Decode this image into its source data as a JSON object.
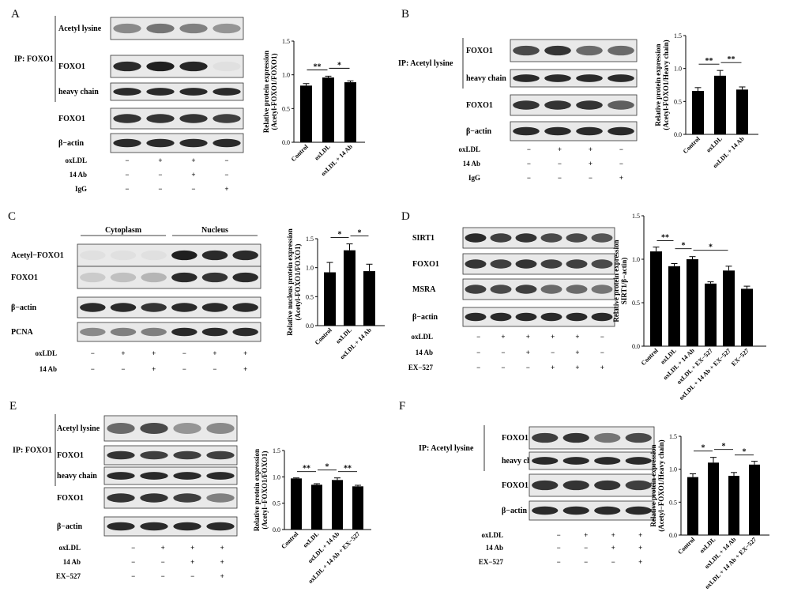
{
  "panels": [
    {
      "id": "A",
      "label": "A",
      "ip_label": "IP: FOXO1",
      "ip_rows": 3,
      "lanes": 4,
      "blot_rows": [
        {
          "label": "Acetyl lysine",
          "intensity": [
            0.45,
            0.55,
            0.5,
            0.4
          ]
        },
        {
          "label": "FOXO1",
          "intensity": [
            0.9,
            0.95,
            0.92,
            0.05
          ]
        },
        {
          "label": "heavy chain",
          "intensity": [
            0.9,
            0.9,
            0.9,
            0.9
          ]
        },
        {
          "label": "FOXO1",
          "intensity": [
            0.85,
            0.85,
            0.85,
            0.8
          ]
        },
        {
          "label": "β−actin",
          "intensity": [
            0.9,
            0.9,
            0.9,
            0.9
          ]
        }
      ],
      "treatments": [
        {
          "label": "oxLDL",
          "signs": [
            "−",
            "+",
            "+",
            "−"
          ]
        },
        {
          "label": "14 Ab",
          "signs": [
            "−",
            "−",
            "+",
            "−"
          ]
        },
        {
          "label": "IgG",
          "signs": [
            "−",
            "−",
            "−",
            "+"
          ]
        }
      ],
      "chart_data": {
        "type": "bar",
        "categories": [
          "Control",
          "oxLDL",
          "oxLDL + 14 Ab"
        ],
        "values": [
          0.84,
          0.96,
          0.89
        ],
        "errors": [
          0.03,
          0.02,
          0.02
        ],
        "ylabel": [
          "Relative protein expression",
          "(Acetyl-FOXO1/FOXO1)"
        ],
        "ylim": [
          0,
          1.5
        ],
        "yticks": [
          "0.0",
          "0.5",
          "1.0",
          "1.5"
        ],
        "significance": [
          {
            "from": 0,
            "to": 1,
            "label": "**"
          },
          {
            "from": 1,
            "to": 2,
            "label": "*"
          }
        ]
      }
    },
    {
      "id": "B",
      "label": "B",
      "ip_label": "IP:  Acetyl lysine",
      "ip_rows": 2,
      "lanes": 4,
      "blot_rows": [
        {
          "label": "FOXO1",
          "intensity": [
            0.75,
            0.85,
            0.6,
            0.6
          ]
        },
        {
          "label": "heavy chain",
          "intensity": [
            0.9,
            0.9,
            0.9,
            0.9
          ]
        },
        {
          "label": "FOXO1",
          "intensity": [
            0.85,
            0.85,
            0.85,
            0.65
          ]
        },
        {
          "label": "β−actin",
          "intensity": [
            0.9,
            0.9,
            0.9,
            0.9
          ]
        }
      ],
      "treatments": [
        {
          "label": "oxLDL",
          "signs": [
            "−",
            "+",
            "+",
            "−"
          ]
        },
        {
          "label": "14 Ab",
          "signs": [
            "−",
            "−",
            "+",
            "−"
          ]
        },
        {
          "label": "IgG",
          "signs": [
            "−",
            "−",
            "−",
            "+"
          ]
        }
      ],
      "chart_data": {
        "type": "bar",
        "categories": [
          "Control",
          "oxLDL",
          "oxLDL + 14 Ab"
        ],
        "values": [
          0.66,
          0.89,
          0.68
        ],
        "errors": [
          0.05,
          0.08,
          0.04
        ],
        "ylabel": [
          "Relative protein expression",
          "(Acetyl-FOXO1/Heavy chain)"
        ],
        "ylim": [
          0,
          1.5
        ],
        "yticks": [
          "0.0",
          "0.5",
          "1.0",
          "1.5"
        ],
        "significance": [
          {
            "from": 0,
            "to": 1,
            "label": "**"
          },
          {
            "from": 1,
            "to": 2,
            "label": "**"
          }
        ]
      }
    },
    {
      "id": "C",
      "label": "C",
      "groups": [
        {
          "label": "Cytoplasm",
          "lanes": [
            0,
            1,
            2
          ]
        },
        {
          "label": "Nucleus",
          "lanes": [
            3,
            4,
            5
          ]
        }
      ],
      "lanes": 6,
      "blot_rows": [
        {
          "label": "Acetyl−FOXO1",
          "intensity": [
            0.05,
            0.05,
            0.05,
            0.95,
            0.9,
            0.9
          ]
        },
        {
          "label": "FOXO1",
          "intensity": [
            0.15,
            0.2,
            0.25,
            0.9,
            0.85,
            0.9
          ]
        },
        {
          "label": "β−actin",
          "intensity": [
            0.9,
            0.9,
            0.85,
            0.9,
            0.9,
            0.9
          ]
        },
        {
          "label": "PCNA",
          "intensity": [
            0.45,
            0.5,
            0.5,
            0.9,
            0.9,
            0.9
          ]
        }
      ],
      "treatments": [
        {
          "label": "oxLDL",
          "signs": [
            "−",
            "+",
            "+",
            "−",
            "+",
            "+"
          ]
        },
        {
          "label": "14 Ab",
          "signs": [
            "−",
            "−",
            "+",
            "−",
            "−",
            "+"
          ]
        }
      ],
      "chart_data": {
        "type": "bar",
        "categories": [
          "Control",
          "oxLDL",
          "oxLDL + 14 Ab"
        ],
        "values": [
          0.92,
          1.3,
          0.94
        ],
        "errors": [
          0.17,
          0.11,
          0.12
        ],
        "ylabel": [
          "Relative nucleus protein expression",
          "(Acetyl-FOXO1/FOXO1)"
        ],
        "ylim": [
          0,
          1.5
        ],
        "yticks": [
          "0.0",
          "0.5",
          "1.0",
          "1.5"
        ],
        "significance": [
          {
            "from": 0,
            "to": 1,
            "label": "*"
          },
          {
            "from": 1,
            "to": 2,
            "label": "*"
          }
        ]
      }
    },
    {
      "id": "D",
      "label": "D",
      "lanes": 6,
      "blot_rows": [
        {
          "label": "SIRT1",
          "intensity": [
            0.9,
            0.8,
            0.85,
            0.75,
            0.75,
            0.7
          ]
        },
        {
          "label": "FOXO1",
          "intensity": [
            0.85,
            0.8,
            0.85,
            0.8,
            0.8,
            0.75
          ]
        },
        {
          "label": "MSRA",
          "intensity": [
            0.8,
            0.75,
            0.8,
            0.6,
            0.6,
            0.55
          ]
        },
        {
          "label": "β−actin",
          "intensity": [
            0.9,
            0.9,
            0.9,
            0.9,
            0.9,
            0.9
          ]
        }
      ],
      "treatments": [
        {
          "label": "oxLDL",
          "signs": [
            "−",
            "+",
            "+",
            "+",
            "+",
            "−"
          ]
        },
        {
          "label": "14 Ab",
          "signs": [
            "−",
            "−",
            "+",
            "−",
            "+",
            "−"
          ]
        },
        {
          "label": "EX−527",
          "signs": [
            "−",
            "−",
            "−",
            "+",
            "+",
            "+"
          ]
        }
      ],
      "chart_data": {
        "type": "bar",
        "categories": [
          "Control",
          "oxLDL",
          "oxLDL + 14 Ab",
          "oxLDL + EX−527",
          "oxLDL + 14 Ab + EX−527",
          "EX−527"
        ],
        "values": [
          1.09,
          0.92,
          1.0,
          0.72,
          0.87,
          0.66
        ],
        "errors": [
          0.05,
          0.03,
          0.03,
          0.02,
          0.05,
          0.03
        ],
        "ylabel": [
          "Relative protein expression",
          "SIRT1/β−actin)"
        ],
        "ylim": [
          0,
          1.5
        ],
        "yticks": [
          "0.0",
          "0.5",
          "1.0",
          "1.5"
        ],
        "significance": [
          {
            "from": 0,
            "to": 1,
            "label": "**"
          },
          {
            "from": 1,
            "to": 2,
            "label": "*"
          },
          {
            "from": 2,
            "to": 4,
            "label": "*"
          }
        ]
      }
    },
    {
      "id": "E",
      "label": "E",
      "ip_label": "IP: FOXO1",
      "ip_rows": 3,
      "lanes": 4,
      "blot_rows": [
        {
          "label": "Acetyl lysine",
          "intensity": [
            0.6,
            0.75,
            0.4,
            0.45
          ]
        },
        {
          "label": "FOXO1",
          "intensity": [
            0.85,
            0.8,
            0.8,
            0.8
          ]
        },
        {
          "label": "heavy chain",
          "intensity": [
            0.9,
            0.9,
            0.9,
            0.9
          ]
        },
        {
          "label": "FOXO1",
          "intensity": [
            0.85,
            0.85,
            0.8,
            0.5
          ]
        },
        {
          "label": "β−actin",
          "intensity": [
            0.9,
            0.9,
            0.9,
            0.9
          ]
        }
      ],
      "treatments": [
        {
          "label": "oxLDL",
          "signs": [
            "−",
            "+",
            "+",
            "+"
          ]
        },
        {
          "label": "14 Ab",
          "signs": [
            "−",
            "−",
            "+",
            "+"
          ]
        },
        {
          "label": "EX−527",
          "signs": [
            "−",
            "−",
            "−",
            "+"
          ]
        }
      ],
      "chart_data": {
        "type": "bar",
        "categories": [
          "Control",
          "oxLDL",
          "oxLDL + 14 Ab",
          "oxLDL + 14 Ab + EX−527"
        ],
        "values": [
          0.97,
          0.85,
          0.94,
          0.82
        ],
        "errors": [
          0.01,
          0.02,
          0.04,
          0.02
        ],
        "ylabel": [
          "Relative protein expression",
          "(Acetyl−FOXO1/FOXO1)"
        ],
        "ylim": [
          0,
          1.5
        ],
        "yticks": [
          "0.0",
          "0.5",
          "1.0",
          "1.5"
        ],
        "significance": [
          {
            "from": 0,
            "to": 1,
            "label": "**"
          },
          {
            "from": 1,
            "to": 2,
            "label": "*"
          },
          {
            "from": 2,
            "to": 3,
            "label": "**"
          }
        ]
      }
    },
    {
      "id": "F",
      "label": "F",
      "ip_label": "IP:  Acetyl lysine",
      "ip_rows": 2,
      "lanes": 4,
      "blot_rows": [
        {
          "label": "FOXO1",
          "intensity": [
            0.8,
            0.85,
            0.55,
            0.75
          ]
        },
        {
          "label": "heavy chain",
          "intensity": [
            0.9,
            0.9,
            0.9,
            0.9
          ]
        },
        {
          "label": "FOXO1",
          "intensity": [
            0.85,
            0.85,
            0.85,
            0.8
          ]
        },
        {
          "label": "β−actin",
          "intensity": [
            0.9,
            0.9,
            0.9,
            0.9
          ]
        }
      ],
      "treatments": [
        {
          "label": "oxLDL",
          "signs": [
            "−",
            "+",
            "+",
            "+"
          ]
        },
        {
          "label": "14 Ab",
          "signs": [
            "−",
            "−",
            "+",
            "+"
          ]
        },
        {
          "label": "EX−527",
          "signs": [
            "−",
            "−",
            "−",
            "+"
          ]
        }
      ],
      "chart_data": {
        "type": "bar",
        "categories": [
          "Control",
          "oxLDL",
          "oxLDL + 14 Ab",
          "oxLDL + 14 Ab + EX−527"
        ],
        "values": [
          0.88,
          1.1,
          0.9,
          1.07
        ],
        "errors": [
          0.05,
          0.08,
          0.05,
          0.05
        ],
        "ylabel": [
          "Relative protein expression",
          "(Acetyl−FOXO1/Heavy chain)"
        ],
        "ylim": [
          0,
          1.5
        ],
        "yticks": [
          "0.0",
          "0.5",
          "1.0",
          "1.5"
        ],
        "significance": [
          {
            "from": 0,
            "to": 1,
            "label": "*"
          },
          {
            "from": 1,
            "to": 2,
            "label": "*"
          },
          {
            "from": 2,
            "to": 3,
            "label": "*"
          }
        ]
      }
    }
  ]
}
